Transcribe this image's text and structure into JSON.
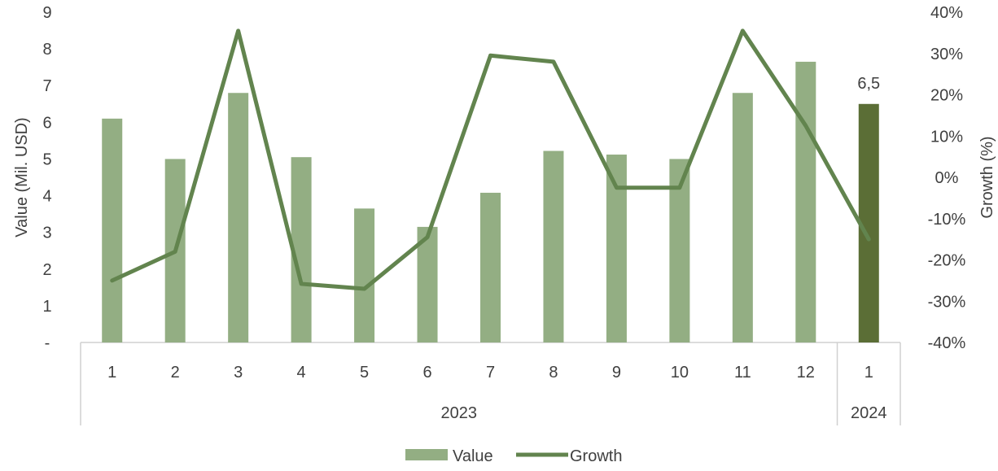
{
  "chart_data": {
    "type": "bar",
    "categories": [
      "1",
      "2",
      "3",
      "4",
      "5",
      "6",
      "7",
      "8",
      "9",
      "10",
      "11",
      "12",
      "1"
    ],
    "groups": [
      {
        "label": "2023",
        "count": 12
      },
      {
        "label": "2024",
        "count": 1
      }
    ],
    "ylabel": "Value (Mil. USD)",
    "y2label": "Growth (%)",
    "ylim": [
      0,
      9
    ],
    "y2lim": [
      -40,
      40
    ],
    "yticks": [
      "-",
      "1",
      "2",
      "3",
      "4",
      "5",
      "6",
      "7",
      "8",
      "9"
    ],
    "y2ticks": [
      "-40%",
      "-30%",
      "-20%",
      "-10%",
      "0%",
      "10%",
      "20%",
      "30%",
      "40%"
    ],
    "series": [
      {
        "name": "Value",
        "type": "bar",
        "axis": "left",
        "values": [
          6.1,
          5.0,
          6.8,
          5.05,
          3.65,
          3.15,
          4.08,
          5.22,
          5.12,
          5.0,
          6.8,
          7.65,
          6.5
        ]
      },
      {
        "name": "Growth",
        "type": "line",
        "axis": "right",
        "values": [
          -25.0,
          -18.0,
          35.5,
          -25.8,
          -27.0,
          -14.5,
          29.5,
          28.0,
          -2.5,
          -2.5,
          35.5,
          12.5,
          -15.0
        ]
      }
    ],
    "data_labels": [
      {
        "index": 12,
        "text": "6,5"
      }
    ],
    "colors": {
      "bar": "#93ae83",
      "highlight_bar": "#5b6e36",
      "line": "#62844e",
      "axis": "#d0d0d0",
      "text": "#404040"
    },
    "legend_position": "bottom",
    "grid": false
  }
}
